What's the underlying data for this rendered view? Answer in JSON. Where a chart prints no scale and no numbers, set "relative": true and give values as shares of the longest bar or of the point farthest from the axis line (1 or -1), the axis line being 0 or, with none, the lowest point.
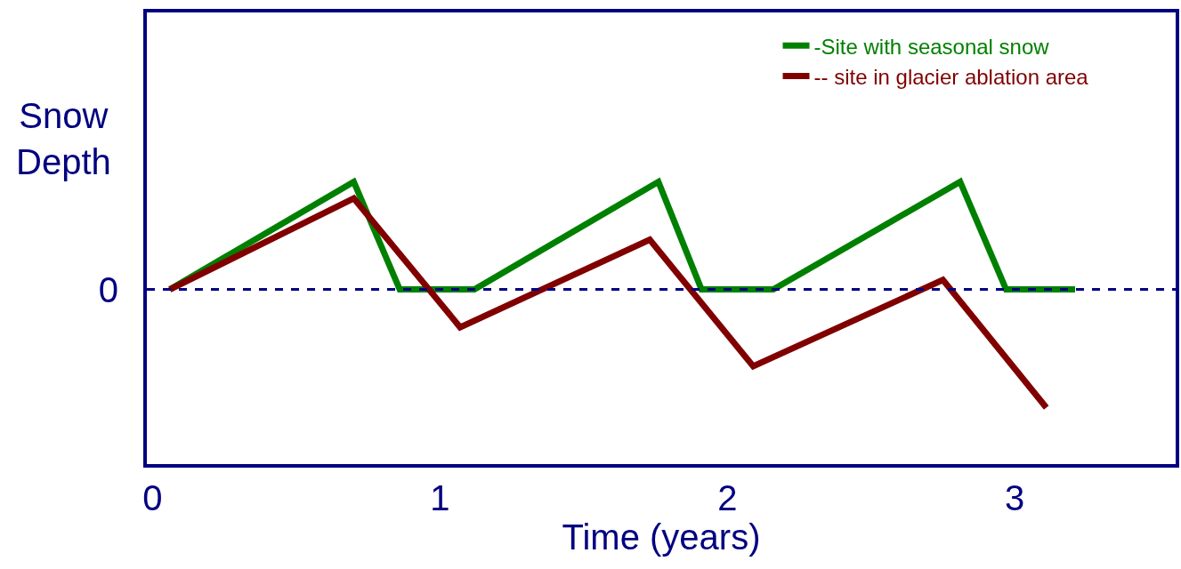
{
  "chart_data": {
    "type": "line",
    "xlabel": "Time (years)",
    "ylabel": "Snow\nDepth",
    "relative": true,
    "xlim": [
      -0.02,
      3.56
    ],
    "xticks": [
      0,
      1,
      2,
      3
    ],
    "series": [
      {
        "name": "-Site with seasonal snow",
        "color": "#008000",
        "x": [
          0.06,
          0.7,
          0.86,
          1.12,
          1.76,
          1.91,
          2.16,
          2.81,
          2.97,
          3.21
        ],
        "values": [
          0,
          0.91,
          0,
          0,
          0.91,
          0,
          0,
          0.91,
          0,
          0
        ]
      },
      {
        "name": "-- site in glacier ablation area",
        "color": "#800000",
        "x": [
          0.06,
          0.7,
          1.07,
          1.73,
          2.09,
          2.75,
          3.11
        ],
        "values": [
          0,
          0.77,
          -0.32,
          0.42,
          -0.65,
          0.08,
          -1
        ]
      }
    ],
    "ref_lines": [
      {
        "axis": "y",
        "value": 0,
        "label": "0",
        "color": "#000080",
        "line_style": "dashed"
      }
    ],
    "legend": "top right",
    "line_style": "solid",
    "marker": "none"
  }
}
